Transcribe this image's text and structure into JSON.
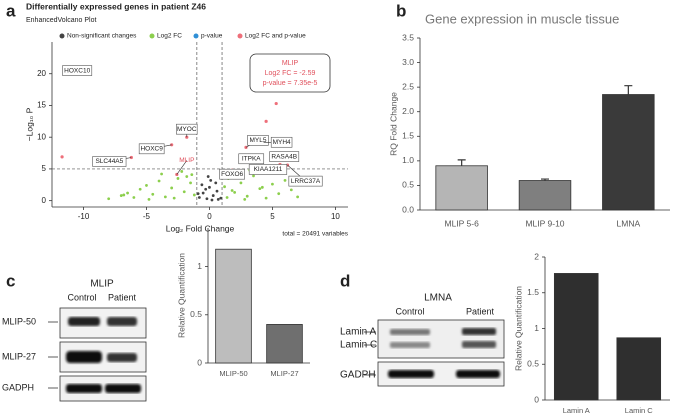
{
  "panel_labels": [
    "a",
    "b",
    "c",
    "d"
  ],
  "chart_data": [
    {
      "type": "scatter",
      "title": "Differentially expressed genes in patient Z46",
      "subtitle": "EnhancedVolcano Plot",
      "xlabel": "Log₂ Fold Change",
      "ylabel": "−Log₁₀ P",
      "caption": "total = 20491 variables",
      "annotation": [
        "MLIP",
        "Log2 FC = -2.59",
        "p-value = 7.35e-5"
      ],
      "xlim": [
        -12.5,
        11
      ],
      "ylim": [
        -1,
        25
      ],
      "xticks": [
        -10,
        -5,
        0,
        5,
        10
      ],
      "yticks": [
        0,
        5,
        10,
        15,
        20
      ],
      "vlines": [
        -1,
        1
      ],
      "hline": 5,
      "series": [
        {
          "name": "Non-significant changes",
          "color": "#444444",
          "x": [
            -0.8,
            -0.5,
            -0.2,
            0,
            0.3,
            0.6,
            0.9,
            -0.6,
            0.1,
            0.5,
            -0.3,
            0.7,
            -0.9,
            0.2,
            -0.1
          ],
          "y": [
            0.5,
            1.2,
            0.3,
            2.1,
            0.8,
            1.5,
            0.4,
            2.5,
            3.2,
            2.8,
            1.8,
            0.2,
            1.1,
            0.1,
            3.8
          ]
        },
        {
          "name": "Log2 FC",
          "color": "#8ccf4d",
          "x": [
            -8,
            -7,
            -6.5,
            -6,
            -5.5,
            -5,
            -4.5,
            -4,
            -3.5,
            -3,
            -2.5,
            -2,
            -1.5,
            -1.2,
            -3.8,
            -2.2,
            -1.8,
            -4.8,
            1.2,
            1.5,
            2,
            2.5,
            3,
            3.5,
            4,
            4.5,
            5,
            5.5,
            6,
            7,
            2.2,
            3.2,
            1.8,
            4.2,
            2.8,
            -2.8,
            -1.4,
            1.4,
            -6.8,
            6.5
          ],
          "y": [
            0.3,
            0.8,
            1.2,
            0.5,
            1.8,
            2.4,
            1,
            3.1,
            0.6,
            2,
            3.5,
            1.4,
            2.8,
            0.9,
            4.2,
            4.6,
            3.8,
            0.2,
            2.2,
            3.5,
            1.3,
            2.8,
            0.7,
            3.9,
            1.9,
            0.4,
            2.6,
            1.1,
            3.2,
            0.6,
            4.4,
            4.8,
            1.6,
            2.1,
            0.2,
            0.4,
            4.1,
            0.5,
            0.9,
            1.7
          ]
        },
        {
          "name": "p-value",
          "color": "#2f8fd6",
          "x": [],
          "y": []
        },
        {
          "name": "Log2 FC and p-value",
          "color": "#ee6f7a",
          "x": [
            -10.5,
            -6.2,
            -3,
            -1.8,
            -2.59,
            2.9,
            4.3,
            3,
            5.3,
            5.6,
            1.8,
            6.2,
            5.3,
            -11.7,
            4.5
          ],
          "y": [
            20.5,
            6.8,
            8.8,
            10,
            4.13,
            8.4,
            9.2,
            6.6,
            7.1,
            5.7,
            4.8,
            5.6,
            15.3,
            6.9,
            12.5
          ],
          "labels": [
            "HOXC10",
            "SLC44A5",
            "HOXC9",
            "MYOC",
            "MLIP",
            "MYL5",
            "MYH4",
            "ITPKA",
            "RASA4B",
            "KIAA1211",
            "FOXO6",
            "LRRC37A",
            null,
            null,
            null
          ]
        }
      ]
    },
    {
      "type": "bar",
      "title": "Gene expression in muscle tissue",
      "ylabel": "RQ Fold Change",
      "categories": [
        "MLIP 5-6",
        "MLIP 9-10",
        "LMNA"
      ],
      "values": [
        0.9,
        0.6,
        2.35
      ],
      "errors": [
        0.12,
        0.03,
        0.18
      ],
      "colors": [
        "#b5b5b5",
        "#7f7f7f",
        "#3a3a3a"
      ],
      "ylim": [
        0,
        3.5
      ],
      "yticks": [
        {
          "value": 0,
          "label": "0.0"
        },
        0.5,
        {
          "value": 1,
          "label": "1.0"
        },
        1.5,
        {
          "value": 2,
          "label": "2.0"
        },
        2.5,
        {
          "value": 3,
          "label": "3.0"
        },
        3.5
      ]
    },
    {
      "type": "bar",
      "ylabel": "Relative Quantification",
      "categories": [
        "MLIP-50",
        "MLIP-27"
      ],
      "values": [
        1.18,
        0.4
      ],
      "colors": [
        "#bdbdbd",
        "#6f6f6f"
      ],
      "ylim": [
        0,
        1.4
      ],
      "yticks": [
        0,
        0.5,
        1
      ]
    },
    {
      "type": "bar",
      "ylabel": "Relative Quantification",
      "categories": [
        "Lamin A",
        "Lamin C"
      ],
      "values": [
        1.77,
        0.87
      ],
      "colors": [
        "#2f2f2f",
        "#2f2f2f"
      ],
      "ylim": [
        0,
        2
      ],
      "yticks": [
        0,
        0.5,
        1,
        1.5,
        2
      ]
    }
  ],
  "blots": [
    {
      "title": "MLIP",
      "lanes": [
        "Control",
        "Patient"
      ],
      "rows": [
        "MLIP-50",
        "MLIP-27",
        "GADPH"
      ]
    },
    {
      "title": "LMNA",
      "lanes": [
        "Control",
        "Patient"
      ],
      "rows": [
        "Lamin A",
        "Lamin C",
        "GADPH"
      ]
    }
  ]
}
